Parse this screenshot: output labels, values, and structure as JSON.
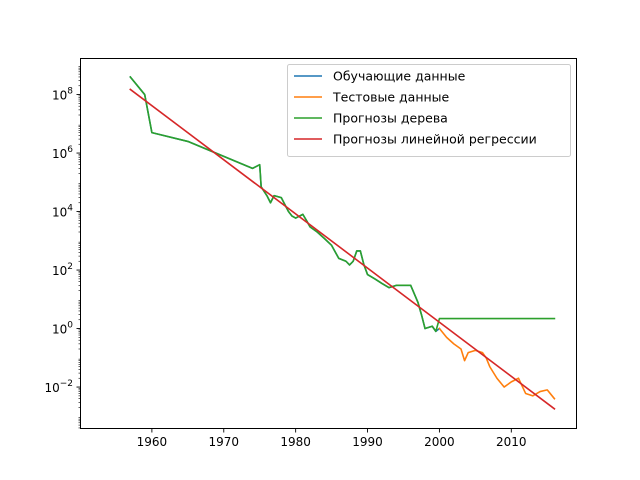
{
  "chart_data": {
    "type": "line",
    "title": "",
    "xlabel": "",
    "ylabel": "",
    "xlim": [
      1950.0,
      2019.0
    ],
    "ylog": true,
    "ylim_log10": [
      -3.4,
      9.25
    ],
    "grid": false,
    "legend_position": "top-right",
    "x_ticks": [
      1960,
      1970,
      1980,
      1990,
      2000,
      2010
    ],
    "x_tick_labels": [
      "1960",
      "1970",
      "1980",
      "1990",
      "2000",
      "2010"
    ],
    "y_ticks_log10": [
      -2,
      0,
      2,
      4,
      6,
      8
    ],
    "y_tick_bases": [
      "10",
      "10",
      "10",
      "10",
      "10",
      "10"
    ],
    "y_tick_exponents": [
      "−2",
      "0",
      "2",
      "4",
      "6",
      "8"
    ],
    "series": [
      {
        "name": "Обучающие данные",
        "color": "#1f77b4",
        "x": [
          1957,
          1959,
          1960,
          1965,
          1974,
          1975,
          1975.2,
          1976,
          1976.5,
          1977,
          1978,
          1979,
          1979.5,
          1980,
          1981,
          1981.5,
          1982,
          1983,
          1984,
          1985,
          1986,
          1987,
          1987.5,
          1988,
          1988.5,
          1989,
          1989.5,
          1990,
          1991,
          1992,
          1993,
          1994,
          1995,
          1996,
          1997,
          1997.5,
          1998,
          1999,
          1999.5,
          2000
        ],
        "y": [
          400000000,
          100000000,
          5000000,
          2500000,
          300000,
          400000,
          70000,
          35000,
          20000,
          35000,
          30000,
          10000,
          7000,
          6000,
          8000,
          5000,
          3000,
          2000,
          1200,
          700,
          250,
          200,
          150,
          200,
          450,
          450,
          150,
          70,
          50,
          35,
          25,
          30,
          30,
          30,
          8,
          3,
          1,
          1.2,
          0.8,
          1
        ]
      },
      {
        "name": "Тестовые данные",
        "color": "#ff7f0e",
        "x": [
          2000,
          2001,
          2002,
          2003,
          2003.5,
          2004,
          2005,
          2006,
          2006.5,
          2007,
          2008,
          2009,
          2010,
          2011,
          2012,
          2013,
          2014,
          2015,
          2016
        ],
        "y": [
          1,
          0.5,
          0.3,
          0.2,
          0.08,
          0.15,
          0.18,
          0.15,
          0.1,
          0.05,
          0.02,
          0.01,
          0.015,
          0.02,
          0.006,
          0.005,
          0.007,
          0.008,
          0.004
        ]
      },
      {
        "name": "Прогнозы дерева",
        "color": "#2ca02c",
        "x": [
          1957,
          1959,
          1960,
          1965,
          1974,
          1975,
          1975.2,
          1976,
          1976.5,
          1977,
          1978,
          1979,
          1979.5,
          1980,
          1981,
          1981.5,
          1982,
          1983,
          1984,
          1985,
          1986,
          1987,
          1987.5,
          1988,
          1988.5,
          1989,
          1989.5,
          1990,
          1991,
          1992,
          1993,
          1994,
          1995,
          1996,
          1997,
          1997.5,
          1998,
          1999,
          1999.5,
          2000,
          2016
        ],
        "y": [
          400000000,
          100000000,
          5000000,
          2500000,
          300000,
          400000,
          70000,
          35000,
          20000,
          35000,
          30000,
          10000,
          7000,
          6000,
          8000,
          5000,
          3000,
          2000,
          1200,
          700,
          250,
          200,
          150,
          200,
          450,
          450,
          150,
          70,
          50,
          35,
          25,
          30,
          30,
          30,
          8,
          3,
          1,
          1.2,
          0.8,
          2.2,
          2.2
        ]
      },
      {
        "name": "Прогнозы линейной регрессии",
        "color": "#d62728",
        "x": [
          1957,
          2016
        ],
        "y": [
          150000000,
          0.0018
        ]
      }
    ]
  }
}
